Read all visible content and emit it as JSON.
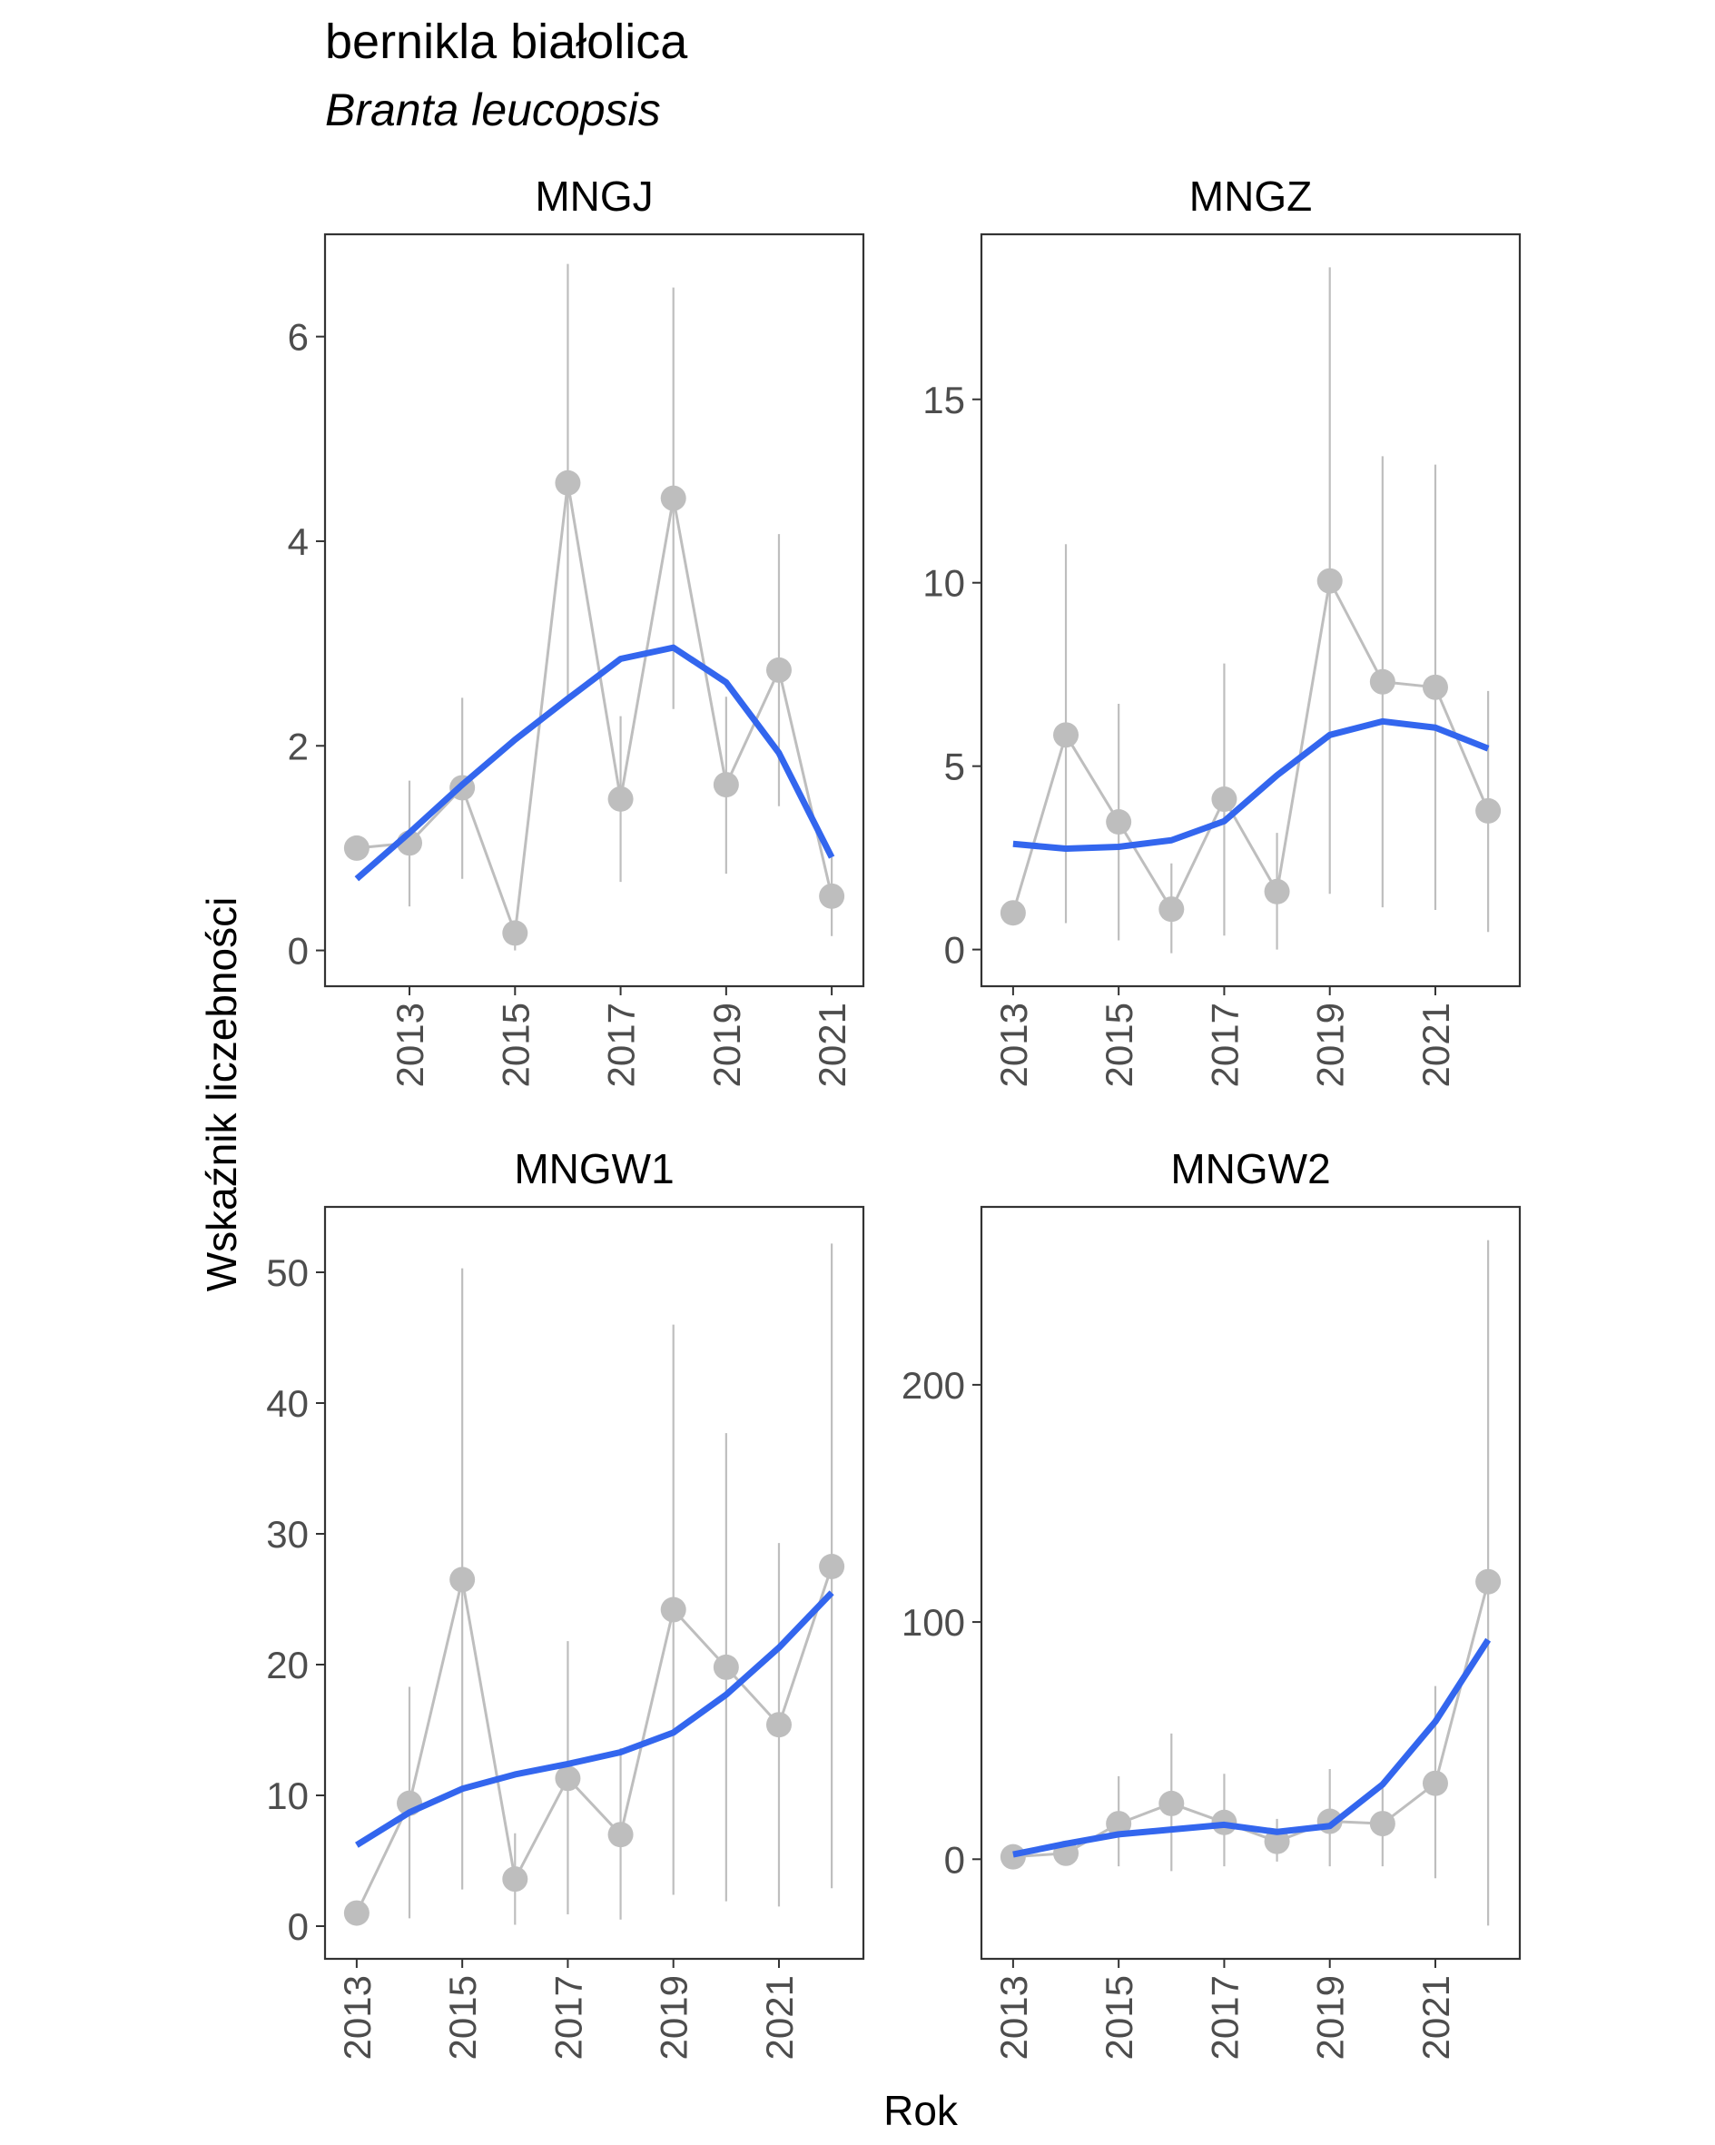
{
  "title": "bernikla białolica",
  "subtitle": "Branta leucopsis",
  "xlabel": "Rok",
  "ylabel": "Wskaźnik liczebności",
  "colors": {
    "observed": "#bebebe",
    "trend": "#3366ee",
    "axis": "#333333",
    "tick_text": "#4d4d4d"
  },
  "chart_data": [
    {
      "type": "line",
      "panel": "MNGJ",
      "x_ticks": [
        2013,
        2015,
        2017,
        2019,
        2021
      ],
      "y_ticks": [
        0,
        2,
        4,
        6
      ],
      "xlim": [
        2011.4,
        2021.6
      ],
      "ylim": [
        -0.35,
        7.0
      ],
      "points": [
        {
          "x": 2012,
          "y": 1.0,
          "lo": 1.0,
          "hi": 1.0
        },
        {
          "x": 2013,
          "y": 1.05,
          "lo": 0.43,
          "hi": 1.66
        },
        {
          "x": 2014,
          "y": 1.59,
          "lo": 0.7,
          "hi": 2.47
        },
        {
          "x": 2015,
          "y": 0.17,
          "lo": 0.0,
          "hi": 0.22
        },
        {
          "x": 2016,
          "y": 4.57,
          "lo": 2.43,
          "hi": 6.71
        },
        {
          "x": 2017,
          "y": 1.48,
          "lo": 0.67,
          "hi": 2.29
        },
        {
          "x": 2018,
          "y": 4.42,
          "lo": 2.36,
          "hi": 6.48
        },
        {
          "x": 2019,
          "y": 1.62,
          "lo": 0.75,
          "hi": 2.48
        },
        {
          "x": 2020,
          "y": 2.74,
          "lo": 1.41,
          "hi": 4.07
        },
        {
          "x": 2021,
          "y": 0.53,
          "lo": 0.14,
          "hi": 0.91
        }
      ],
      "trend": [
        {
          "x": 2012,
          "y": 0.7
        },
        {
          "x": 2013,
          "y": 1.15
        },
        {
          "x": 2014,
          "y": 1.62
        },
        {
          "x": 2015,
          "y": 2.06
        },
        {
          "x": 2016,
          "y": 2.46
        },
        {
          "x": 2017,
          "y": 2.85
        },
        {
          "x": 2018,
          "y": 2.96
        },
        {
          "x": 2019,
          "y": 2.62
        },
        {
          "x": 2020,
          "y": 1.93
        },
        {
          "x": 2021,
          "y": 0.91
        }
      ]
    },
    {
      "type": "line",
      "panel": "MNGZ",
      "x_ticks": [
        2013,
        2015,
        2017,
        2019,
        2021
      ],
      "y_ticks": [
        0,
        5,
        10,
        15
      ],
      "xlim": [
        2012.4,
        2022.6
      ],
      "ylim": [
        -1.0,
        19.5
      ],
      "points": [
        {
          "x": 2013,
          "y": 1.0,
          "lo": 1.0,
          "hi": 1.0
        },
        {
          "x": 2014,
          "y": 5.85,
          "lo": 0.72,
          "hi": 11.05
        },
        {
          "x": 2015,
          "y": 3.48,
          "lo": 0.25,
          "hi": 6.7
        },
        {
          "x": 2016,
          "y": 1.1,
          "lo": -0.1,
          "hi": 2.35
        },
        {
          "x": 2017,
          "y": 4.1,
          "lo": 0.38,
          "hi": 7.8
        },
        {
          "x": 2018,
          "y": 1.58,
          "lo": 0.0,
          "hi": 3.18
        },
        {
          "x": 2019,
          "y": 10.05,
          "lo": 1.52,
          "hi": 18.6
        },
        {
          "x": 2020,
          "y": 7.3,
          "lo": 1.15,
          "hi": 13.45
        },
        {
          "x": 2021,
          "y": 7.15,
          "lo": 1.08,
          "hi": 13.22
        },
        {
          "x": 2022,
          "y": 3.78,
          "lo": 0.48,
          "hi": 7.05
        }
      ],
      "trend": [
        {
          "x": 2013,
          "y": 2.88
        },
        {
          "x": 2014,
          "y": 2.75
        },
        {
          "x": 2015,
          "y": 2.8
        },
        {
          "x": 2016,
          "y": 2.98
        },
        {
          "x": 2017,
          "y": 3.5
        },
        {
          "x": 2018,
          "y": 4.75
        },
        {
          "x": 2019,
          "y": 5.85
        },
        {
          "x": 2020,
          "y": 6.22
        },
        {
          "x": 2021,
          "y": 6.05
        },
        {
          "x": 2022,
          "y": 5.48
        }
      ]
    },
    {
      "type": "line",
      "panel": "MNGW1",
      "x_ticks": [
        2013,
        2015,
        2017,
        2019,
        2021
      ],
      "y_ticks": [
        0,
        10,
        20,
        30,
        40,
        50
      ],
      "xlim": [
        2012.4,
        2022.6
      ],
      "ylim": [
        -2.5,
        55.0
      ],
      "points": [
        {
          "x": 2013,
          "y": 1.0,
          "lo": 1.0,
          "hi": 1.0
        },
        {
          "x": 2014,
          "y": 9.4,
          "lo": 0.6,
          "hi": 18.3
        },
        {
          "x": 2015,
          "y": 26.5,
          "lo": 2.8,
          "hi": 50.3
        },
        {
          "x": 2016,
          "y": 3.6,
          "lo": 0.1,
          "hi": 7.1
        },
        {
          "x": 2017,
          "y": 11.3,
          "lo": 0.9,
          "hi": 21.8
        },
        {
          "x": 2018,
          "y": 7.0,
          "lo": 0.5,
          "hi": 13.6
        },
        {
          "x": 2019,
          "y": 24.2,
          "lo": 2.4,
          "hi": 46.0
        },
        {
          "x": 2020,
          "y": 19.8,
          "lo": 1.9,
          "hi": 37.7
        },
        {
          "x": 2021,
          "y": 15.4,
          "lo": 1.5,
          "hi": 29.3
        },
        {
          "x": 2022,
          "y": 27.5,
          "lo": 2.9,
          "hi": 52.2
        }
      ],
      "trend": [
        {
          "x": 2013,
          "y": 6.2
        },
        {
          "x": 2014,
          "y": 8.7
        },
        {
          "x": 2015,
          "y": 10.5
        },
        {
          "x": 2016,
          "y": 11.6
        },
        {
          "x": 2017,
          "y": 12.4
        },
        {
          "x": 2018,
          "y": 13.3
        },
        {
          "x": 2019,
          "y": 14.8
        },
        {
          "x": 2020,
          "y": 17.7
        },
        {
          "x": 2021,
          "y": 21.3
        },
        {
          "x": 2022,
          "y": 25.5
        }
      ]
    },
    {
      "type": "line",
      "panel": "MNGW2",
      "x_ticks": [
        2013,
        2015,
        2017,
        2019,
        2021
      ],
      "y_ticks": [
        0,
        100,
        200
      ],
      "xlim": [
        2012.4,
        2022.6
      ],
      "ylim": [
        -42.0,
        275.0
      ],
      "points": [
        {
          "x": 2013,
          "y": 1.0,
          "lo": 1.0,
          "hi": 1.0
        },
        {
          "x": 2014,
          "y": 2.5,
          "lo": -1.0,
          "hi": 6.0
        },
        {
          "x": 2015,
          "y": 15.0,
          "lo": -3.0,
          "hi": 35.0
        },
        {
          "x": 2016,
          "y": 23.5,
          "lo": -5.0,
          "hi": 53.0
        },
        {
          "x": 2017,
          "y": 15.5,
          "lo": -3.0,
          "hi": 36.0
        },
        {
          "x": 2018,
          "y": 7.5,
          "lo": -1.0,
          "hi": 17.0
        },
        {
          "x": 2019,
          "y": 16.0,
          "lo": -3.0,
          "hi": 38.0
        },
        {
          "x": 2020,
          "y": 15.0,
          "lo": -3.0,
          "hi": 33.0
        },
        {
          "x": 2021,
          "y": 32.0,
          "lo": -8.0,
          "hi": 73.0
        },
        {
          "x": 2022,
          "y": 117.0,
          "lo": -28.0,
          "hi": 261.0
        }
      ],
      "trend": [
        {
          "x": 2013,
          "y": 2.0
        },
        {
          "x": 2014,
          "y": 6.5
        },
        {
          "x": 2015,
          "y": 10.5
        },
        {
          "x": 2016,
          "y": 12.5
        },
        {
          "x": 2017,
          "y": 14.5
        },
        {
          "x": 2018,
          "y": 11.5
        },
        {
          "x": 2019,
          "y": 14.0
        },
        {
          "x": 2020,
          "y": 31.5
        },
        {
          "x": 2021,
          "y": 58.0
        },
        {
          "x": 2022,
          "y": 92.5
        }
      ]
    }
  ]
}
